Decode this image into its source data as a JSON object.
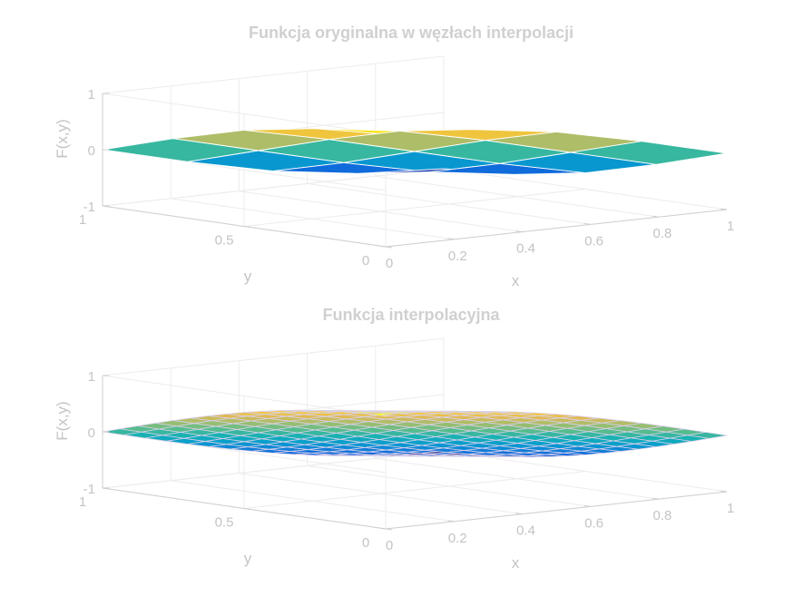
{
  "chart_data": [
    {
      "type": "surface",
      "title": "Funkcja oryginalna w węzłach interpolacji",
      "xlabel": "x",
      "ylabel": "y",
      "zlabel": "F(x,y)",
      "xlim": [
        0,
        1
      ],
      "ylim": [
        0,
        1
      ],
      "zlim": [
        -1,
        1
      ],
      "xticks": [
        "0",
        "0.2",
        "0.4",
        "0.6",
        "0.8",
        "1"
      ],
      "yticks": [
        "0",
        "0.5",
        "1"
      ],
      "zticks": [
        "-1",
        "0",
        "1"
      ],
      "grid": true,
      "colormap": "parula",
      "edgecolor": "#ffffff",
      "x": [
        0,
        0.25,
        0.5,
        0.75,
        1
      ],
      "y": [
        0,
        0.25,
        0.5,
        0.75,
        1
      ],
      "z": [
        [
          1.0,
          0.92,
          0.71,
          0.38,
          0.0
        ],
        [
          0.92,
          0.71,
          0.38,
          0.0,
          -0.38
        ],
        [
          0.71,
          0.38,
          0.0,
          -0.38,
          -0.71
        ],
        [
          0.38,
          0.0,
          -0.38,
          -0.71,
          -0.92
        ],
        [
          0.0,
          -0.38,
          -0.71,
          -0.92,
          -1.0
        ]
      ]
    },
    {
      "type": "mesh",
      "title": "Funkcja interpolacyjna",
      "xlabel": "x",
      "ylabel": "y",
      "zlabel": "F(x,y)",
      "xlim": [
        0,
        1
      ],
      "ylim": [
        0,
        1
      ],
      "zlim": [
        -1,
        1
      ],
      "xticks": [
        "0",
        "0.2",
        "0.4",
        "0.6",
        "0.8",
        "1"
      ],
      "yticks": [
        "0",
        "0.5",
        "1"
      ],
      "zticks": [
        "-1",
        "0",
        "1"
      ],
      "grid": true,
      "colormap": "parula",
      "edgecolor": "#ffffff",
      "x": [
        0,
        0.0625,
        0.125,
        0.1875,
        0.25,
        0.3125,
        0.375,
        0.4375,
        0.5,
        0.5625,
        0.625,
        0.6875,
        0.75,
        0.8125,
        0.875,
        0.9375,
        1
      ],
      "y": [
        0,
        0.0625,
        0.125,
        0.1875,
        0.25,
        0.3125,
        0.375,
        0.4375,
        0.5,
        0.5625,
        0.625,
        0.6875,
        0.75,
        0.8125,
        0.875,
        0.9375,
        1
      ],
      "z_function": "cos(pi*(x+y)/2)"
    }
  ]
}
